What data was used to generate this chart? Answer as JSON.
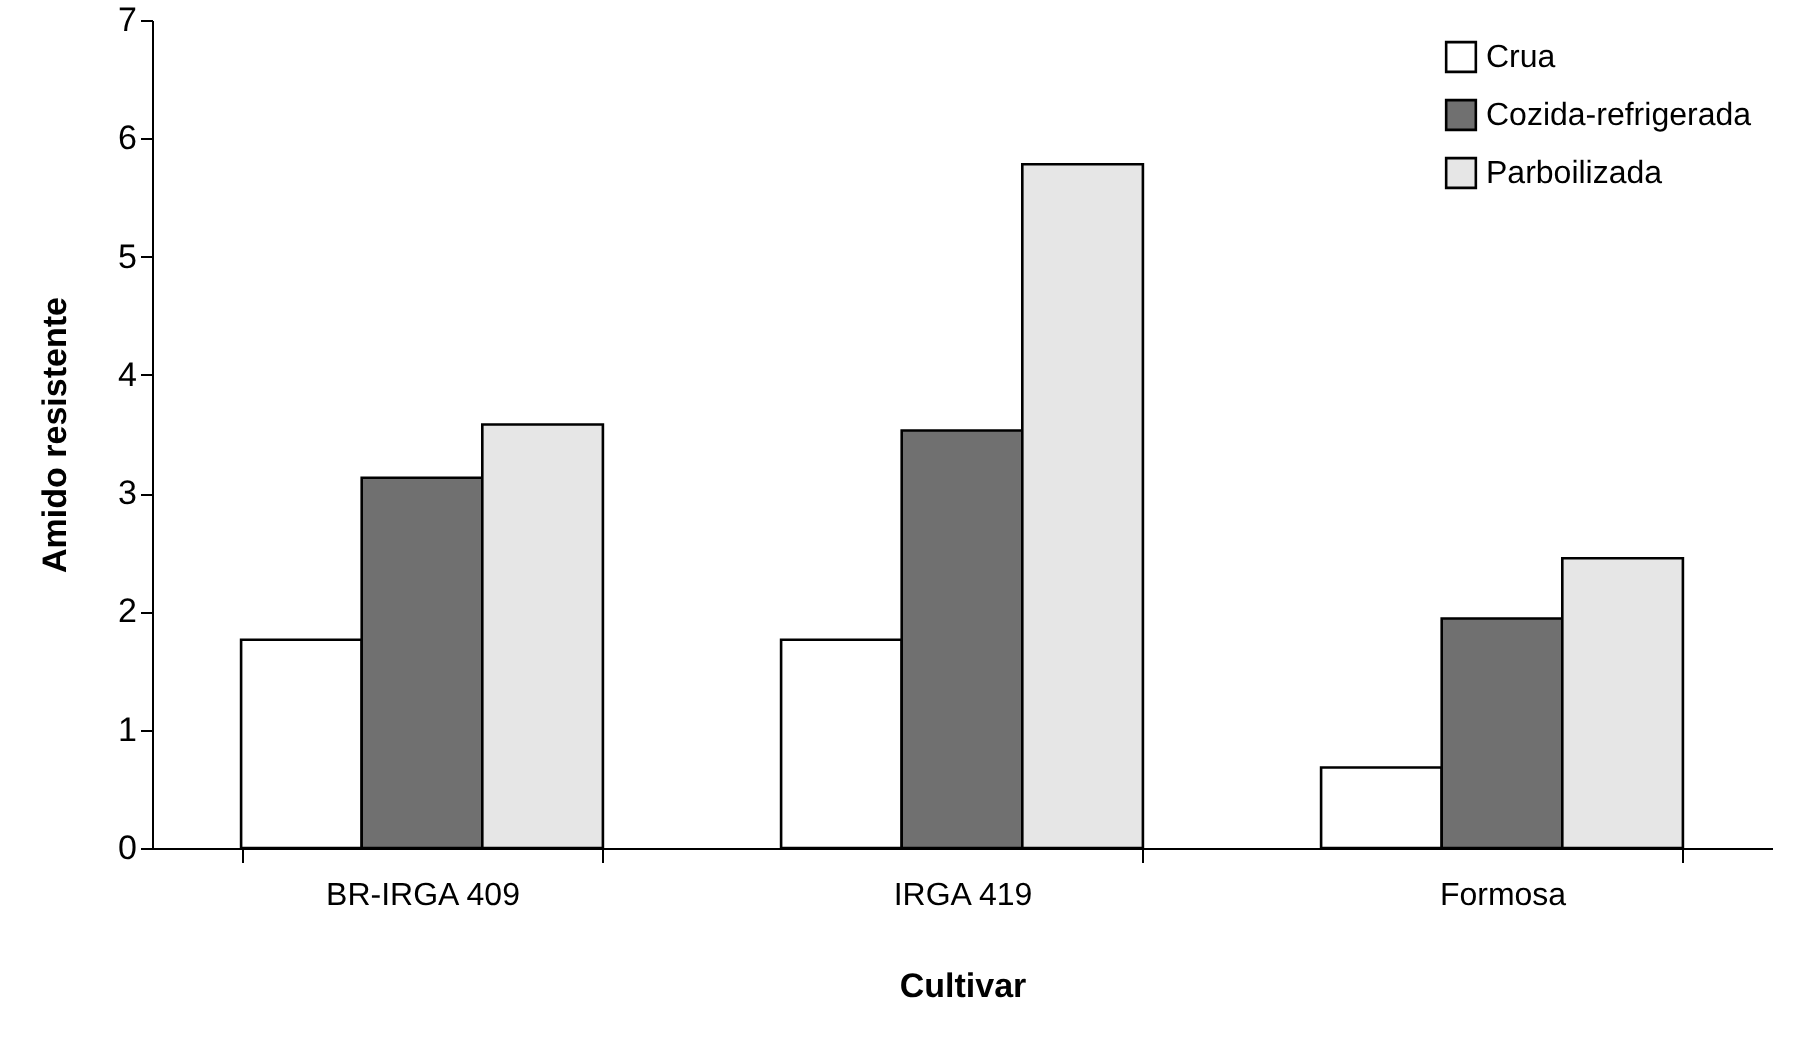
{
  "chart_data": {
    "type": "bar",
    "xlabel": "Cultivar",
    "ylabel": "Amido resistente",
    "categories": [
      "BR-IRGA 409",
      "IRGA 419",
      "Formosa"
    ],
    "series": [
      {
        "name": "Crua",
        "color": "#ffffff",
        "values": [
          1.76,
          1.76,
          0.68
        ]
      },
      {
        "name": "Cozida-refrigerada",
        "color": "#707070",
        "values": [
          3.13,
          3.53,
          1.94
        ]
      },
      {
        "name": "Parboilizada",
        "color": "#e6e6e6",
        "values": [
          3.58,
          5.78,
          2.45
        ]
      }
    ],
    "ylim": [
      0,
      7
    ],
    "yticks": [
      0,
      1,
      2,
      3,
      4,
      5,
      6,
      7
    ],
    "grid": false,
    "legend": "top right"
  }
}
